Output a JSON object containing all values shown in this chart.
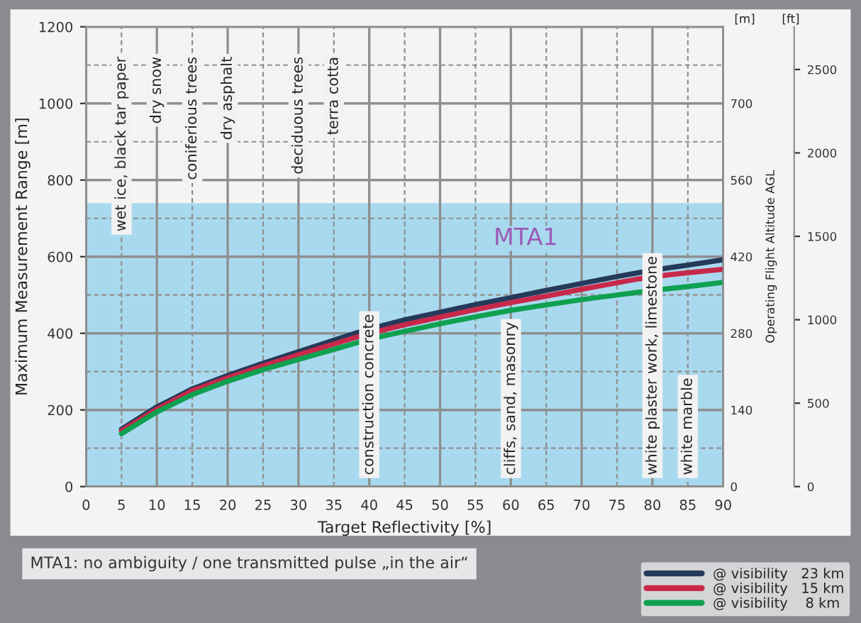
{
  "chart_data": {
    "type": "line",
    "xlabel": "Target Reflectivity [%]",
    "ylabel": "Maximum Measurement Range [m]",
    "y2label": "[m]",
    "y3label": "[ft]",
    "x": [
      5,
      10,
      15,
      20,
      25,
      30,
      35,
      38,
      42,
      45,
      50,
      55,
      60,
      65,
      70,
      75,
      78,
      82,
      85,
      90
    ],
    "series": [
      {
        "name": "@ visibility   23 km",
        "color": "#253a5a",
        "values": [
          150,
          208,
          255,
          290,
          322,
          352,
          382,
          400,
          421,
          435,
          455,
          475,
          493,
          512,
          530,
          548,
          558,
          570,
          578,
          592
        ]
      },
      {
        "name": "@ visibility   15 km",
        "color": "#c8284a",
        "values": [
          145,
          202,
          250,
          284,
          315,
          344,
          372,
          389,
          409,
          422,
          442,
          462,
          480,
          497,
          515,
          532,
          542,
          552,
          558,
          567
        ]
      },
      {
        "name": "@ visibility    8 km",
        "color": "#0fa050",
        "values": [
          138,
          195,
          240,
          275,
          305,
          332,
          358,
          374,
          393,
          405,
          425,
          443,
          460,
          474,
          488,
          500,
          507,
          516,
          522,
          533
        ]
      }
    ],
    "xlim": [
      0,
      90
    ],
    "xticks": [
      0,
      5,
      10,
      15,
      20,
      25,
      30,
      35,
      40,
      45,
      50,
      55,
      60,
      65,
      70,
      75,
      80,
      85,
      90
    ],
    "ylim": [
      0,
      1200
    ],
    "yticks": [
      0,
      200,
      400,
      600,
      800,
      1000,
      1200
    ],
    "y2lim": [
      0,
      840
    ],
    "y2ticks": [
      0,
      140,
      280,
      420,
      560,
      700
    ],
    "y3lim": [
      0,
      2756
    ],
    "y3ticks": [
      0,
      500,
      1000,
      1500,
      2000,
      2500
    ],
    "bands": [
      {
        "axis": "y",
        "from": 0,
        "to": 740,
        "label": "MTA1",
        "color": "#a9d9ee"
      }
    ],
    "annotations": [
      "wet ice, black tar paper",
      "dry snow",
      "coniferious trees",
      "dry asphalt",
      "deciduous trees",
      "terra cotta",
      "construction concrete",
      "cliffs, sand, masonry",
      "white plaster work, limestone",
      "white marble",
      "Operating Flight Altitude AGL",
      "MTA1: no ambiguity / one transmitted pulse „in the air“"
    ],
    "grid": true,
    "legend": "bottom right",
    "line_style": "solid",
    "marker": "none"
  }
}
